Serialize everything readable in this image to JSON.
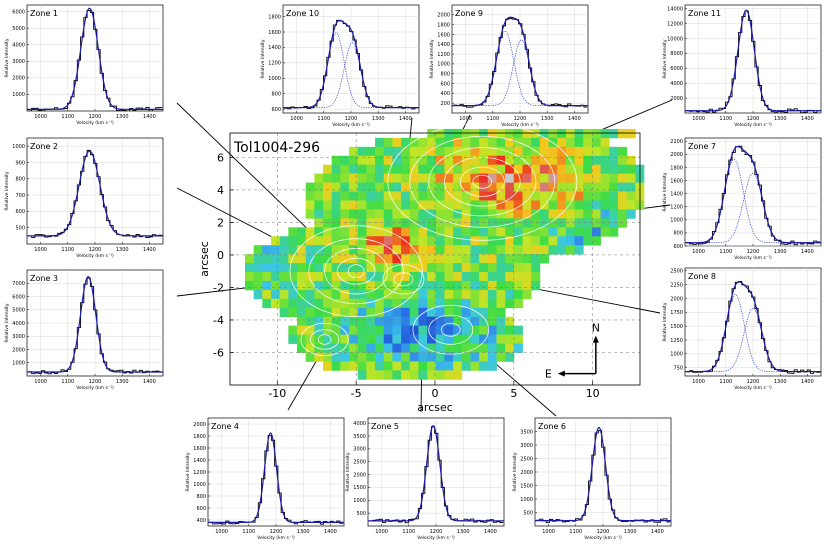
{
  "chart_data": [
    {
      "type": "heatmap",
      "title": "Tol1004-296",
      "xlabel": "arcsec",
      "ylabel": "arcsec",
      "xlim": [
        -13,
        13
      ],
      "ylim": [
        -8,
        7.5
      ],
      "x_ticks": [
        "-10",
        "-5",
        "0",
        "5",
        "10"
      ],
      "y_ticks": [
        "-6",
        "-4",
        "-2",
        "0",
        "2",
        "4",
        "6"
      ],
      "compass": {
        "north": "N",
        "east": "E"
      },
      "colors": {
        "low": "#1a5fd0",
        "mid": "#3ce03c",
        "high": "#e81818",
        "peak": "#c8c8c8"
      }
    },
    {
      "type": "line",
      "title": "Zone 1",
      "xlabel": "Velocity (km s⁻¹)",
      "ylabel": "Relative Intensity",
      "xlim": [
        950,
        1450
      ],
      "ylim": [
        0,
        6400
      ],
      "x_ticks": [
        "1000",
        "1100",
        "1200",
        "1300",
        "1400"
      ],
      "y_ticks": [
        "1000",
        "2000",
        "3000",
        "4000",
        "5000",
        "6000"
      ],
      "center": 1180,
      "sigma": 32,
      "peak": 6200,
      "baseline": 100,
      "components": []
    },
    {
      "type": "line",
      "title": "Zone 2",
      "xlabel": "Velocity (km s⁻¹)",
      "ylabel": "Relative Intensity",
      "xlim": [
        950,
        1450
      ],
      "ylim": [
        400,
        1050
      ],
      "x_ticks": [
        "1000",
        "1100",
        "1200",
        "1300",
        "1400"
      ],
      "y_ticks": [
        "500",
        "600",
        "700",
        "800",
        "900",
        "1000"
      ],
      "center": 1180,
      "sigma": 38,
      "peak": 970,
      "baseline": 450,
      "components": []
    },
    {
      "type": "line",
      "title": "Zone 3",
      "xlabel": "Velocity (km s⁻¹)",
      "ylabel": "Relative Intensity",
      "xlim": [
        950,
        1450
      ],
      "ylim": [
        0,
        8000
      ],
      "x_ticks": [
        "1000",
        "1100",
        "1200",
        "1300",
        "1400"
      ],
      "y_ticks": [
        "1000",
        "2000",
        "3000",
        "4000",
        "5000",
        "6000",
        "7000"
      ],
      "center": 1175,
      "sigma": 28,
      "peak": 7500,
      "baseline": 300,
      "components": []
    },
    {
      "type": "line",
      "title": "Zone 4",
      "xlabel": "Velocity (km s⁻¹)",
      "ylabel": "Relative Intensity",
      "xlim": [
        950,
        1450
      ],
      "ylim": [
        300,
        2100
      ],
      "x_ticks": [
        "1000",
        "1100",
        "1200",
        "1300",
        "1400"
      ],
      "y_ticks": [
        "400",
        "600",
        "800",
        "1000",
        "1200",
        "1400",
        "1600",
        "1800",
        "2000"
      ],
      "center": 1180,
      "sigma": 22,
      "peak": 1850,
      "baseline": 360,
      "components": []
    },
    {
      "type": "line",
      "title": "Zone 5",
      "xlabel": "Velocity (km s⁻¹)",
      "ylabel": "Relative Intensity",
      "xlim": [
        950,
        1450
      ],
      "ylim": [
        0,
        4200
      ],
      "x_ticks": [
        "1000",
        "1100",
        "1200",
        "1300",
        "1400"
      ],
      "y_ticks": [
        "500",
        "1000",
        "1500",
        "2000",
        "2500",
        "3000",
        "3500",
        "4000"
      ],
      "center": 1190,
      "sigma": 24,
      "peak": 3900,
      "baseline": 200,
      "components": []
    },
    {
      "type": "line",
      "title": "Zone 6",
      "xlabel": "Velocity (km s⁻¹)",
      "ylabel": "Relative Intensity",
      "xlim": [
        950,
        1450
      ],
      "ylim": [
        0,
        4000
      ],
      "x_ticks": [
        "1000",
        "1100",
        "1200",
        "1300",
        "1400"
      ],
      "y_ticks": [
        "500",
        "1000",
        "1500",
        "2000",
        "2500",
        "3000",
        "3500"
      ],
      "center": 1185,
      "sigma": 24,
      "peak": 3650,
      "baseline": 200,
      "components": []
    },
    {
      "type": "line",
      "title": "Zone 7",
      "xlabel": "Velocity (km s⁻¹)",
      "ylabel": "Relative Intensity",
      "xlim": [
        950,
        1450
      ],
      "ylim": [
        600,
        2250
      ],
      "x_ticks": [
        "1000",
        "1100",
        "1200",
        "1300",
        "1400"
      ],
      "y_ticks": [
        "600",
        "800",
        "1000",
        "1200",
        "1400",
        "1600",
        "1800",
        "2000",
        "2200"
      ],
      "center": 1160,
      "sigma": 55,
      "peak": 2120,
      "baseline": 650,
      "components": [
        {
          "center": 1130,
          "sigma": 35,
          "peak": 1800
        },
        {
          "center": 1200,
          "sigma": 35,
          "peak": 1500
        }
      ]
    },
    {
      "type": "line",
      "title": "Zone 8",
      "xlabel": "Velocity (km s⁻¹)",
      "ylabel": "Relative Intensity",
      "xlim": [
        950,
        1450
      ],
      "ylim": [
        600,
        2550
      ],
      "x_ticks": [
        "1000",
        "1100",
        "1200",
        "1300",
        "1400"
      ],
      "y_ticks": [
        "750",
        "1000",
        "1250",
        "1500",
        "1750",
        "2000",
        "2250",
        "2500"
      ],
      "center": 1160,
      "sigma": 52,
      "peak": 2300,
      "baseline": 680,
      "components": [
        {
          "center": 1135,
          "sigma": 33,
          "peak": 1950
        },
        {
          "center": 1200,
          "sigma": 33,
          "peak": 1600
        }
      ]
    },
    {
      "type": "line",
      "title": "Zone 9",
      "xlabel": "Velocity (km s⁻¹)",
      "ylabel": "Relative Intensity",
      "xlim": [
        950,
        1450
      ],
      "ylim": [
        0,
        2200
      ],
      "x_ticks": [
        "1000",
        "1100",
        "1200",
        "1300",
        "1400"
      ],
      "y_ticks": [
        "200",
        "400",
        "600",
        "800",
        "1000",
        "1200",
        "1400",
        "1600",
        "1800",
        "2000"
      ],
      "center": 1175,
      "sigma": 52,
      "peak": 1950,
      "baseline": 150,
      "components": [
        {
          "center": 1145,
          "sigma": 32,
          "peak": 1700
        },
        {
          "center": 1205,
          "sigma": 30,
          "peak": 1500
        }
      ]
    },
    {
      "type": "line",
      "title": "Zone 10",
      "xlabel": "Velocity (km s⁻¹)",
      "ylabel": "Relative Intensity",
      "xlim": [
        950,
        1450
      ],
      "ylim": [
        550,
        1950
      ],
      "x_ticks": [
        "1000",
        "1100",
        "1200",
        "1300",
        "1400"
      ],
      "y_ticks": [
        "600",
        "800",
        "1000",
        "1200",
        "1400",
        "1600",
        "1800"
      ],
      "center": 1175,
      "sigma": 50,
      "peak": 1750,
      "baseline": 620,
      "components": [
        {
          "center": 1145,
          "sigma": 30,
          "peak": 1500
        },
        {
          "center": 1205,
          "sigma": 30,
          "peak": 1300
        }
      ]
    },
    {
      "type": "line",
      "title": "Zone 11",
      "xlabel": "Velocity (km s⁻¹)",
      "ylabel": "Relative Intensity",
      "xlim": [
        950,
        1450
      ],
      "ylim": [
        0,
        14500
      ],
      "x_ticks": [
        "1000",
        "1100",
        "1200",
        "1300",
        "1400"
      ],
      "y_ticks": [
        "2000",
        "4000",
        "6000",
        "8000",
        "10000",
        "12000",
        "14000"
      ],
      "center": 1175,
      "sigma": 30,
      "peak": 13800,
      "baseline": 300,
      "components": []
    }
  ]
}
